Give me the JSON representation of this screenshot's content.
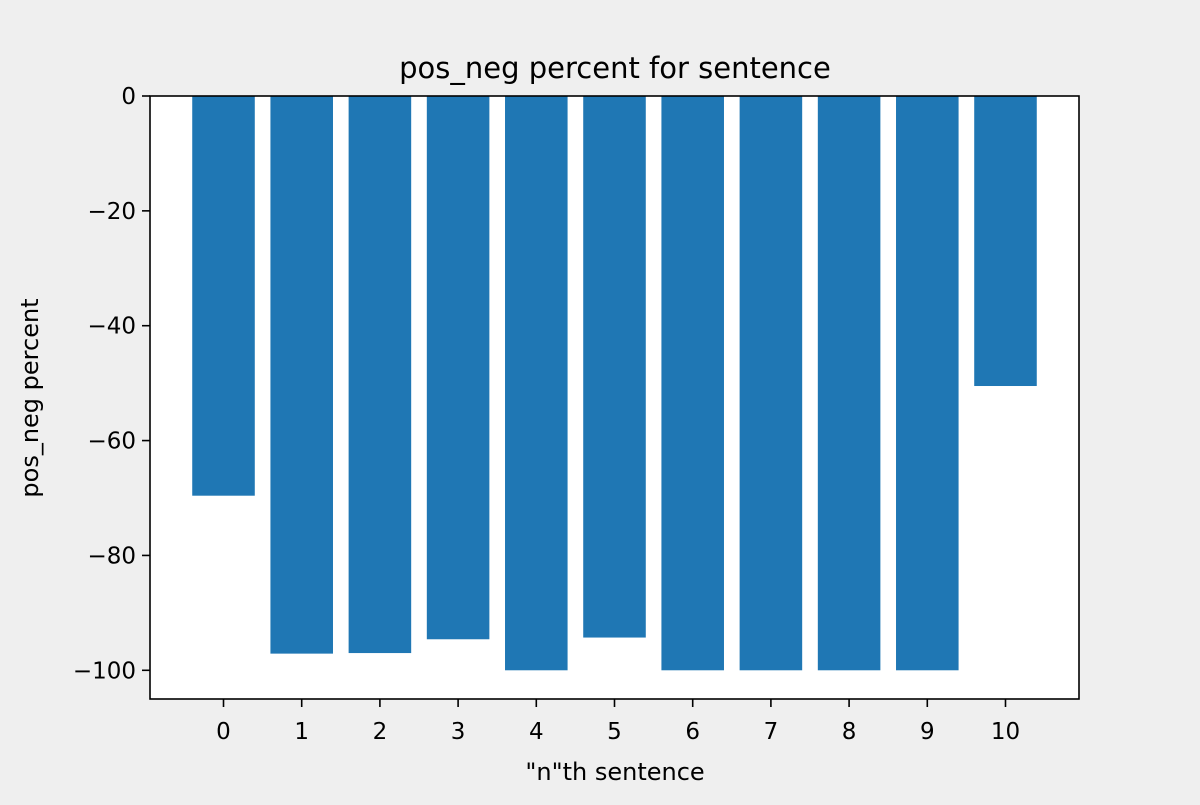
{
  "colors": {
    "background": "#efefef",
    "plot_area": "#ffffff",
    "bar": "#1f77b4",
    "axis": "#000000"
  },
  "chart_data": {
    "type": "bar",
    "title": "pos_neg percent for sentence",
    "xlabel": "\"n\"th sentence",
    "ylabel": "pos_neg percent",
    "categories": [
      "0",
      "1",
      "2",
      "3",
      "4",
      "5",
      "6",
      "7",
      "8",
      "9",
      "10"
    ],
    "values": [
      -69.6,
      -97.1,
      -97.0,
      -94.6,
      -100.0,
      -94.3,
      -100.0,
      -100.0,
      -100.0,
      -100.0,
      -50.5
    ],
    "ylim": [
      -105,
      0
    ],
    "yticks": [
      0,
      -20,
      -40,
      -60,
      -80,
      -100
    ],
    "ytick_labels": [
      "0",
      "−20",
      "−40",
      "−60",
      "−80",
      "−100"
    ],
    "grid": false,
    "legend": "none"
  }
}
